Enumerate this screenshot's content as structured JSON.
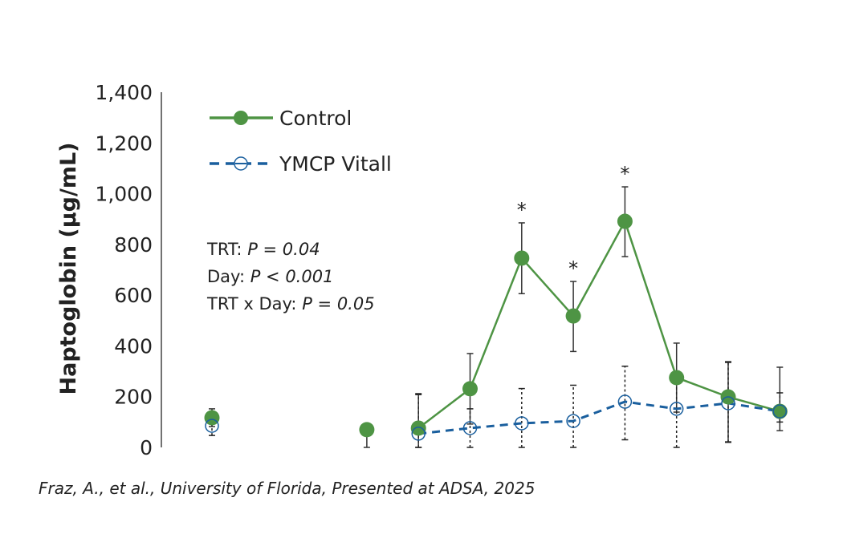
{
  "chart_data": {
    "type": "line",
    "ylabel": "Haptoglobin (µg/mL)",
    "ylim": [
      0,
      1400
    ],
    "yticks": [
      "0",
      "200",
      "400",
      "600",
      "800",
      "1,000",
      "1,200",
      "1,400"
    ],
    "ytick_values": [
      0,
      200,
      400,
      600,
      800,
      1000,
      1200,
      1400
    ],
    "x": [
      1,
      4,
      5,
      6,
      7,
      8,
      9,
      10,
      11,
      12
    ],
    "legend_position": "top-left",
    "grid": false,
    "series": [
      {
        "name": "Control",
        "color": "#4e9444",
        "style": "solid",
        "marker": "filled-circle",
        "values": [
          117,
          70,
          76,
          231,
          746,
          518,
          891,
          275,
          199,
          142
        ],
        "error_low": [
          82,
          0,
          0,
          92,
          606,
          378,
          752,
          139,
          22,
          66
        ],
        "error_high": [
          152,
          70,
          212,
          370,
          885,
          654,
          1027,
          411,
          338,
          316
        ],
        "significant": [
          false,
          false,
          false,
          false,
          true,
          true,
          true,
          false,
          false,
          false
        ]
      },
      {
        "name": "YMCP Vitall",
        "color": "#1a5f9e",
        "style": "dashed",
        "marker": "open-circle",
        "values": [
          85,
          null,
          54,
          76,
          95,
          104,
          180,
          152,
          174,
          142
        ],
        "error_low": [
          47,
          null,
          0,
          0,
          0,
          0,
          30,
          0,
          20,
          100
        ],
        "error_high": [
          120,
          null,
          208,
          152,
          232,
          245,
          320,
          300,
          335,
          215
        ]
      }
    ],
    "annotations": {
      "significance_marker": "*",
      "stats": [
        {
          "label": "TRT:",
          "value": "P = 0.04"
        },
        {
          "label": "Day:",
          "value": "P < 0.001"
        },
        {
          "label": "TRT x Day:",
          "value": "P = 0.05"
        }
      ]
    },
    "source": "Fraz, A., et al., University of Florida, Presented at ADSA, 2025"
  }
}
